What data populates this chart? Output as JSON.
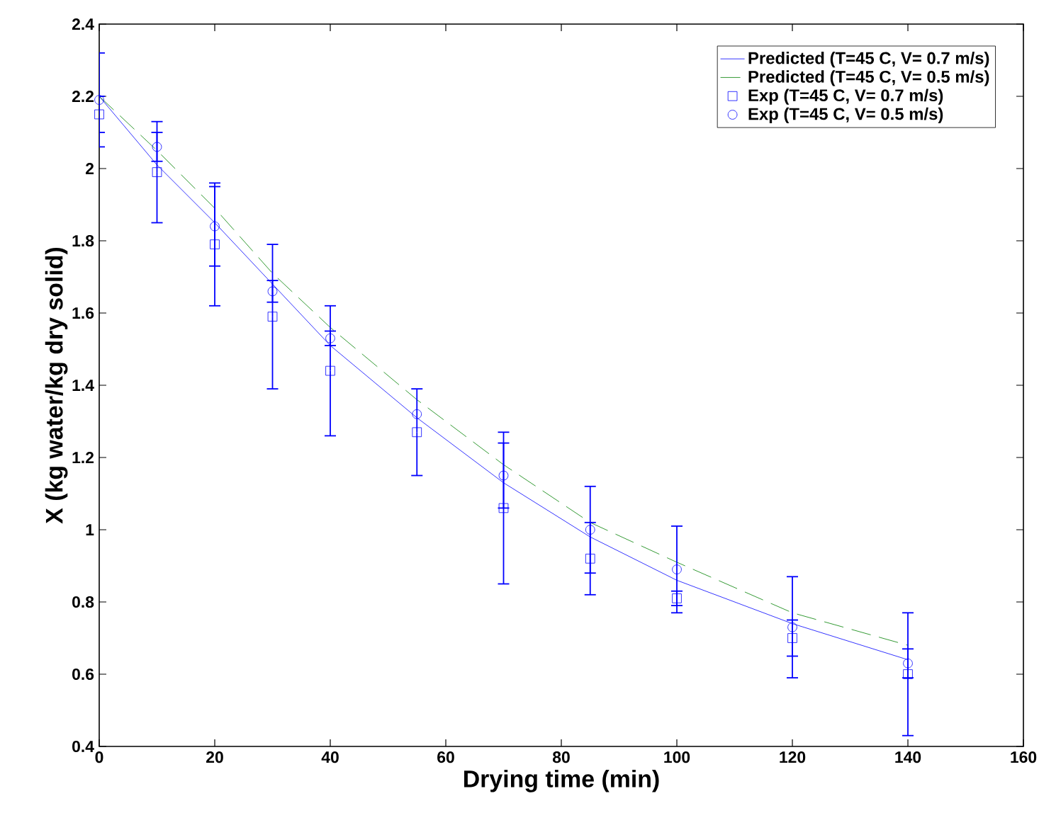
{
  "chart_data": {
    "type": "line",
    "xlabel": "Drying time (min)",
    "ylabel": "X (kg water/kg dry solid)",
    "xlim": [
      0,
      160
    ],
    "ylim": [
      0.4,
      2.4
    ],
    "xticks": [
      0,
      20,
      40,
      60,
      80,
      100,
      120,
      140,
      160
    ],
    "yticks": [
      0.4,
      0.6,
      0.8,
      1,
      1.2,
      1.4,
      1.6,
      1.8,
      2,
      2.2,
      2.4
    ],
    "grid": false,
    "legend": "top right",
    "series": [
      {
        "name": "Predicted (T=45 C, V= 0.7 m/s)",
        "type": "line",
        "color": "#0000ff",
        "line_style": "solid",
        "x": [
          0,
          10,
          20,
          30,
          40,
          55,
          70,
          85,
          100,
          120,
          140
        ],
        "values": [
          2.2,
          2.01,
          1.85,
          1.68,
          1.51,
          1.31,
          1.13,
          0.98,
          0.86,
          0.74,
          0.64
        ]
      },
      {
        "name": "Predicted (T=45 C, V= 0.5 m/s)",
        "type": "line",
        "color": "#008000",
        "line_style": "dashed",
        "x": [
          0,
          10,
          20,
          30,
          40,
          55,
          70,
          85,
          100,
          120,
          140
        ],
        "values": [
          2.2,
          2.05,
          1.89,
          1.71,
          1.56,
          1.36,
          1.18,
          1.02,
          0.91,
          0.77,
          0.68
        ]
      },
      {
        "name": "Exp (T=45 C, V= 0.7 m/s)",
        "type": "scatter",
        "marker": "square",
        "color": "#0000ff",
        "x": [
          0,
          10,
          20,
          30,
          40,
          55,
          70,
          85,
          100,
          120,
          140
        ],
        "values": [
          2.15,
          1.99,
          1.79,
          1.59,
          1.44,
          1.27,
          1.06,
          0.92,
          0.81,
          0.7,
          0.6
        ],
        "errors": [
          0.05,
          0.14,
          0.17,
          0.2,
          0.18,
          0.12,
          0.21,
          0.1,
          0.02,
          0.05,
          0.17
        ]
      },
      {
        "name": "Exp (T=45 C, V= 0.5 m/s)",
        "type": "scatter",
        "marker": "circle",
        "color": "#0000fe",
        "x": [
          0,
          10,
          20,
          30,
          40,
          55,
          70,
          85,
          100,
          120,
          140
        ],
        "values": [
          2.19,
          2.06,
          1.84,
          1.66,
          1.53,
          1.32,
          1.15,
          1.0,
          0.89,
          0.73,
          0.63
        ],
        "errors": [
          0.13,
          0.04,
          0.11,
          0.03,
          0.02,
          null,
          0.09,
          0.12,
          0.12,
          0.14,
          0.04
        ]
      }
    ]
  }
}
